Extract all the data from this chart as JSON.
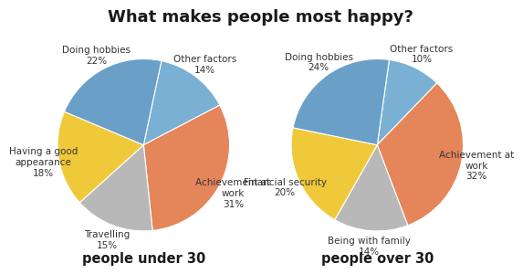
{
  "title": "What makes people most happy?",
  "title_fontsize": 13,
  "chart1_label": "people under 30",
  "chart2_label": "people over 30",
  "chart1": {
    "labels": [
      "Other factors\n14%",
      "Achievement at\nwork\n31%",
      "Travelling\n15%",
      "Having a good\nappearance\n18%",
      "Doing hobbies\n22%"
    ],
    "values": [
      14,
      31,
      15,
      18,
      22
    ],
    "colors": [
      "#7ab0d4",
      "#e5855a",
      "#b8b8b8",
      "#f0c93a",
      "#6a9fc8"
    ],
    "startangle": 78
  },
  "chart2": {
    "labels": [
      "Other factors\n10%",
      "Achievement at\nwork\n32%",
      "Being with family\n14%",
      "Financial security\n20%",
      "Doing hobbies\n24%"
    ],
    "values": [
      10,
      32,
      14,
      20,
      24
    ],
    "colors": [
      "#7ab0d4",
      "#e5855a",
      "#b8b8b8",
      "#f0c93a",
      "#6a9fc8"
    ],
    "startangle": 82
  },
  "background_color": "#ffffff",
  "label_fontsize": 7.5,
  "sublabel_fontsize": 10.5
}
